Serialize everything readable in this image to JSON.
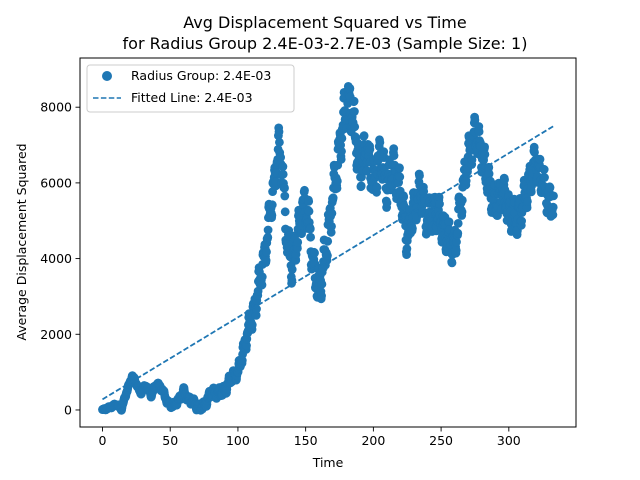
{
  "chart_data": {
    "type": "scatter",
    "title_lines": [
      "Avg Displacement Squared vs Time",
      "for Radius Group 2.4E-03-2.7E-03 (Sample Size: 1)"
    ],
    "xlabel": "Time",
    "ylabel": "Average Displacement Squared",
    "xlim": [
      -16.6,
      349.6
    ],
    "ylim": [
      -450,
      9300
    ],
    "xticks": [
      0,
      50,
      100,
      150,
      200,
      250,
      300
    ],
    "yticks": [
      0,
      2000,
      4000,
      6000,
      8000
    ],
    "grid": false,
    "legend_position": "top-left",
    "colors": {
      "series": "#1f77b4"
    },
    "series": [
      {
        "name": "Radius Group: 2.4E-03",
        "kind": "scatter",
        "x_range": [
          0,
          333
        ],
        "keypoints": [
          [
            0,
            0
          ],
          [
            5,
            60
          ],
          [
            10,
            150
          ],
          [
            14,
            30
          ],
          [
            18,
            500
          ],
          [
            22,
            900
          ],
          [
            25,
            700
          ],
          [
            28,
            450
          ],
          [
            32,
            650
          ],
          [
            36,
            400
          ],
          [
            40,
            700
          ],
          [
            44,
            550
          ],
          [
            48,
            200
          ],
          [
            52,
            100
          ],
          [
            56,
            250
          ],
          [
            60,
            500
          ],
          [
            63,
            300
          ],
          [
            67,
            200
          ],
          [
            71,
            60
          ],
          [
            75,
            100
          ],
          [
            80,
            450
          ],
          [
            85,
            450
          ],
          [
            90,
            500
          ],
          [
            95,
            850
          ],
          [
            100,
            1000
          ],
          [
            105,
            1700
          ],
          [
            108,
            2200
          ],
          [
            112,
            2600
          ],
          [
            116,
            3400
          ],
          [
            120,
            4100
          ],
          [
            124,
            5300
          ],
          [
            127,
            6000
          ],
          [
            130,
            7000
          ],
          [
            133,
            6300
          ],
          [
            136,
            4500
          ],
          [
            140,
            3800
          ],
          [
            144,
            4600
          ],
          [
            148,
            5400
          ],
          [
            152,
            5100
          ],
          [
            156,
            3700
          ],
          [
            160,
            3200
          ],
          [
            165,
            4200
          ],
          [
            170,
            5600
          ],
          [
            174,
            6600
          ],
          [
            178,
            7700
          ],
          [
            182,
            8200
          ],
          [
            186,
            7500
          ],
          [
            190,
            6300
          ],
          [
            195,
            6900
          ],
          [
            200,
            6000
          ],
          [
            205,
            6700
          ],
          [
            210,
            5900
          ],
          [
            215,
            6400
          ],
          [
            220,
            5800
          ],
          [
            225,
            4500
          ],
          [
            230,
            5400
          ],
          [
            235,
            5800
          ],
          [
            240,
            5000
          ],
          [
            245,
            5300
          ],
          [
            250,
            5000
          ],
          [
            255,
            4500
          ],
          [
            260,
            4300
          ],
          [
            265,
            5600
          ],
          [
            270,
            6700
          ],
          [
            275,
            7300
          ],
          [
            280,
            6800
          ],
          [
            285,
            6000
          ],
          [
            290,
            5400
          ],
          [
            295,
            5800
          ],
          [
            300,
            5300
          ],
          [
            305,
            5000
          ],
          [
            310,
            5400
          ],
          [
            315,
            6000
          ],
          [
            320,
            6600
          ],
          [
            325,
            6000
          ],
          [
            330,
            5500
          ],
          [
            333,
            5400
          ]
        ],
        "amplitude_bands": [
          [
            0,
            30
          ],
          [
            50,
            80
          ],
          [
            100,
            180
          ],
          [
            115,
            450
          ],
          [
            180,
            650
          ],
          [
            225,
            550
          ],
          [
            333,
            500
          ]
        ]
      },
      {
        "name": "Fitted Line: 2.4E-03",
        "kind": "line",
        "style": "dashed",
        "x": [
          0,
          333
        ],
        "y": [
          280,
          7500
        ]
      }
    ]
  }
}
